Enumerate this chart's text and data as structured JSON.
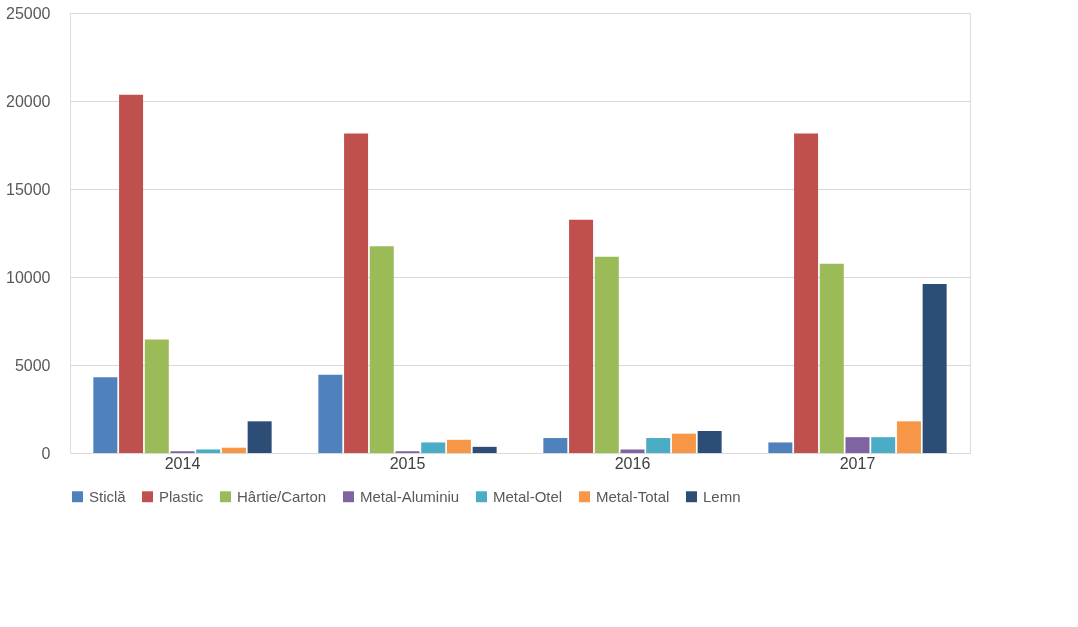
{
  "chart_data": {
    "type": "bar",
    "categories": [
      "2014",
      "2015",
      "2016",
      "2017"
    ],
    "series": [
      {
        "name": "Sticlă",
        "color": "#4f81bd",
        "values": [
          4300,
          4450,
          850,
          600
        ]
      },
      {
        "name": "Plastic",
        "color": "#c0504d",
        "values": [
          20350,
          18150,
          13250,
          18150
        ]
      },
      {
        "name": "Hârtie/Carton",
        "color": "#9bbb59",
        "values": [
          6450,
          11750,
          11150,
          10750
        ]
      },
      {
        "name": "Metal-Aluminiu",
        "color": "#8064a2",
        "values": [
          100,
          100,
          200,
          900
        ]
      },
      {
        "name": "Metal-Otel",
        "color": "#4bacc6",
        "values": [
          200,
          600,
          850,
          900
        ]
      },
      {
        "name": "Metal-Total",
        "color": "#f79646",
        "values": [
          300,
          750,
          1100,
          1800
        ]
      },
      {
        "name": "Lemn",
        "color": "#2c4d75",
        "values": [
          1800,
          350,
          1250,
          9600
        ]
      }
    ],
    "ylim": [
      0,
      25000
    ],
    "yticks": [
      0,
      5000,
      10000,
      15000,
      20000,
      25000
    ],
    "grid": "y",
    "legend": "bottom"
  }
}
